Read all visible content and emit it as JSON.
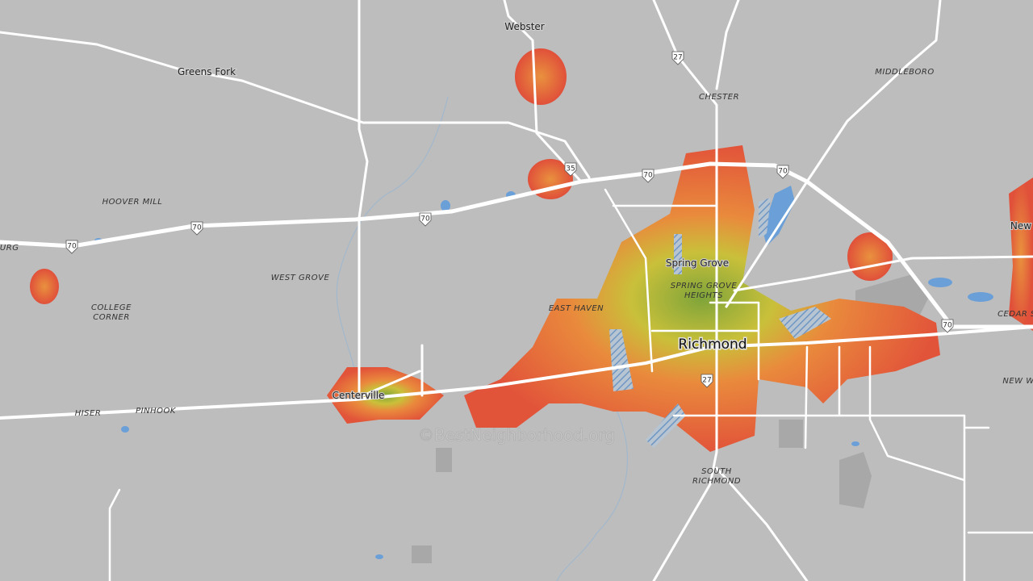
{
  "places": [
    "Webster",
    "Greens Fork",
    "CHESTER",
    "MIDDLEBORO",
    "HOOVER MILL",
    "BURG",
    "WEST GROVE",
    "COLLEGE",
    "CORNER",
    "EAST HAVEN",
    "Spring Grove",
    "SPRING GROVE",
    "HEIGHTS",
    "Richmond",
    "Centerville",
    "HISER",
    "PINHOOK",
    "SOUTH",
    "RICHMOND",
    "CEDAR S",
    "New",
    "NEW W"
  ],
  "shields": [
    "27",
    "27",
    "35",
    "70",
    "70",
    "70",
    "70",
    "70",
    "70"
  ],
  "watermark": "©BestNeighborhood.org"
}
